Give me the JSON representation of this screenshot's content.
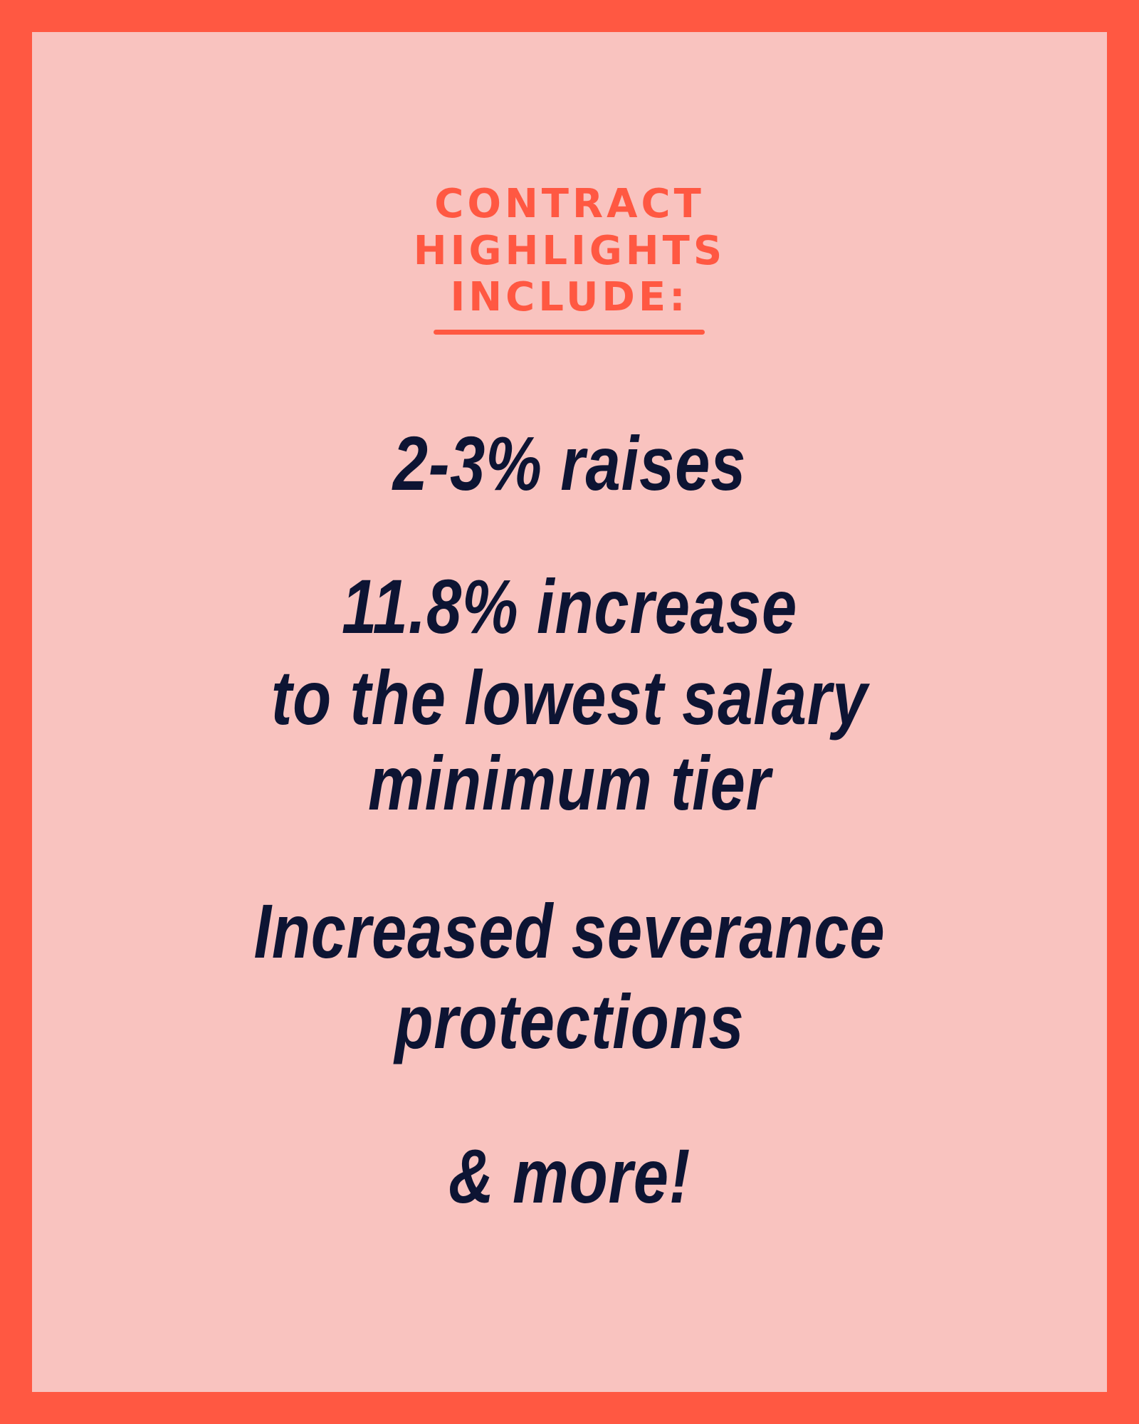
{
  "header": {
    "title_lines": [
      "CONTRACT",
      "HIGHLIGHTS",
      "INCLUDE:"
    ]
  },
  "highlights": [
    {
      "lines": [
        "2-3% raises"
      ]
    },
    {
      "lines": [
        "11.8% increase",
        "to the lowest salary",
        "minimum tier"
      ]
    },
    {
      "lines": [
        "Increased severance",
        "protections"
      ]
    },
    {
      "lines": [
        "& more!"
      ]
    }
  ]
}
